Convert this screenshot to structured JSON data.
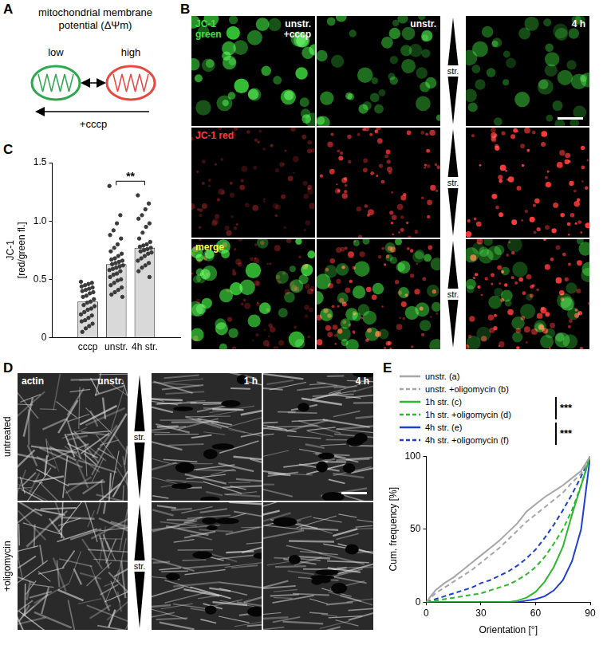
{
  "panel_letters": [
    "A",
    "B",
    "C",
    "D",
    "E"
  ],
  "diagram": {
    "title": "mitochondrial membrane potential (ΔΨm)",
    "states": [
      {
        "label": "low",
        "color": "#2fa84f"
      },
      {
        "label": "high",
        "color": "#e8493f"
      }
    ],
    "arrow_label": "+cccp"
  },
  "micrographs": [
    {
      "columns": [
        "unstr. +cccp",
        "unstr.",
        "4 h"
      ],
      "rows": [
        {
          "label": "JC-1 green",
          "color": "#3fe03f"
        },
        {
          "label": "JC-1 red",
          "color": "#ff3a3a"
        },
        {
          "label": "merge",
          "color": "#ffff40"
        }
      ],
      "stretch_label": "str.",
      "stretched_columns": [
        "4 h"
      ]
    },
    {
      "channel": "actin",
      "columns": [
        "unstr.",
        "1 h",
        "4 h"
      ],
      "rows": [
        {
          "label": "untreated"
        },
        {
          "label": "+oligomycin"
        }
      ],
      "stretch_label": "str.",
      "stretched_columns": [
        "1 h",
        "4 h"
      ]
    }
  ],
  "chart_data": [
    {
      "type": "bar",
      "categories": [
        "cccp",
        "unstr.",
        "4h str."
      ],
      "values": [
        0.31,
        0.63,
        0.77
      ],
      "points": [
        [
          0.48,
          0.47,
          0.46,
          0.45,
          0.44,
          0.43,
          0.42,
          0.41,
          0.4,
          0.39,
          0.38,
          0.36,
          0.35,
          0.33,
          0.31,
          0.3,
          0.28,
          0.27,
          0.25,
          0.24,
          0.22,
          0.2,
          0.19,
          0.17,
          0.15,
          0.14,
          0.12,
          0.1,
          0.08,
          0.05
        ],
        [
          1.3,
          1.05,
          0.98,
          0.92,
          0.88,
          0.85,
          0.8,
          0.77,
          0.74,
          0.72,
          0.7,
          0.68,
          0.67,
          0.66,
          0.65,
          0.64,
          0.63,
          0.62,
          0.61,
          0.6,
          0.59,
          0.58,
          0.57,
          0.55,
          0.54,
          0.52,
          0.5,
          0.49,
          0.47,
          0.45,
          0.43,
          0.41,
          0.39,
          0.37,
          0.35
        ],
        [
          1.22,
          1.15,
          1.1,
          1.05,
          1.02,
          0.98,
          0.95,
          0.9,
          0.85,
          0.82,
          0.8,
          0.79,
          0.78,
          0.77,
          0.76,
          0.75,
          0.74,
          0.73,
          0.72,
          0.7,
          0.68,
          0.66,
          0.64,
          0.62,
          0.6,
          0.57,
          0.52
        ]
      ],
      "color": "#d9d9d9",
      "y_label": [
        "JC-1",
        "[red/green fl.]"
      ],
      "ylim": [
        0,
        1.5
      ],
      "yticks": [
        0,
        0.5,
        {
          "value": 1,
          "label": "1.0"
        },
        1.5
      ],
      "grid": false,
      "significance": [
        {
          "between": [
            "unstr.",
            "4h str."
          ],
          "label": "**"
        }
      ]
    },
    {
      "type": "line",
      "x": [
        0,
        5,
        10,
        15,
        20,
        25,
        30,
        35,
        40,
        45,
        50,
        55,
        60,
        65,
        70,
        75,
        80,
        85,
        90
      ],
      "series": [
        {
          "name": "unstr. (a)",
          "color": "#a6a6a6",
          "line_style": "solid",
          "values": [
            0,
            8,
            13,
            17,
            22,
            27,
            32,
            37,
            42,
            48,
            54,
            62,
            67,
            72,
            76,
            80,
            85,
            90,
            100
          ]
        },
        {
          "name": "unstr. +oligomycin (b)",
          "color": "#a6a6a6",
          "line_style": "dashed",
          "values": [
            0,
            6,
            10,
            14,
            18,
            22,
            27,
            32,
            37,
            43,
            49,
            55,
            60,
            65,
            70,
            75,
            82,
            88,
            100
          ]
        },
        {
          "name": "1h str. (c)",
          "color": "#2db92d",
          "line_style": "solid",
          "values": [
            0,
            0,
            0,
            0,
            0,
            0,
            0,
            0,
            0,
            0,
            1,
            3,
            7,
            14,
            24,
            38,
            60,
            80,
            100
          ]
        },
        {
          "name": "1h str. +oligomycin (d)",
          "color": "#2db92d",
          "line_style": "dashed",
          "values": [
            0,
            1,
            2,
            3,
            4,
            5,
            6,
            8,
            10,
            12,
            15,
            19,
            24,
            31,
            40,
            50,
            63,
            80,
            100
          ]
        },
        {
          "name": "4h str. (e)",
          "color": "#1f3fd1",
          "line_style": "solid",
          "values": [
            0,
            0,
            0,
            0,
            0,
            0,
            0,
            0,
            0,
            0,
            0,
            1,
            2,
            4,
            8,
            15,
            28,
            50,
            100
          ]
        },
        {
          "name": "4h str. +oligomycin (f)",
          "color": "#1f3fd1",
          "line_style": "dashed",
          "values": [
            0,
            2,
            4,
            6,
            8,
            10,
            13,
            15,
            18,
            21,
            25,
            30,
            36,
            44,
            53,
            63,
            74,
            86,
            100
          ]
        }
      ],
      "x_label": "Orientation [°]",
      "y_label": "Cum. frequency [%]",
      "xlim": [
        0,
        90
      ],
      "xticks": [
        0,
        30,
        60,
        90
      ],
      "ylim": [
        0,
        100
      ],
      "yticks": [
        0,
        50,
        100
      ],
      "legend": "top",
      "grid": false,
      "significance": [
        {
          "between": [
            "1h str. (c)",
            "1h str. +oligomycin (d)"
          ],
          "label": "***"
        },
        {
          "between": [
            "4h str. (e)",
            "4h str. +oligomycin (f)"
          ],
          "label": "***"
        }
      ]
    }
  ]
}
